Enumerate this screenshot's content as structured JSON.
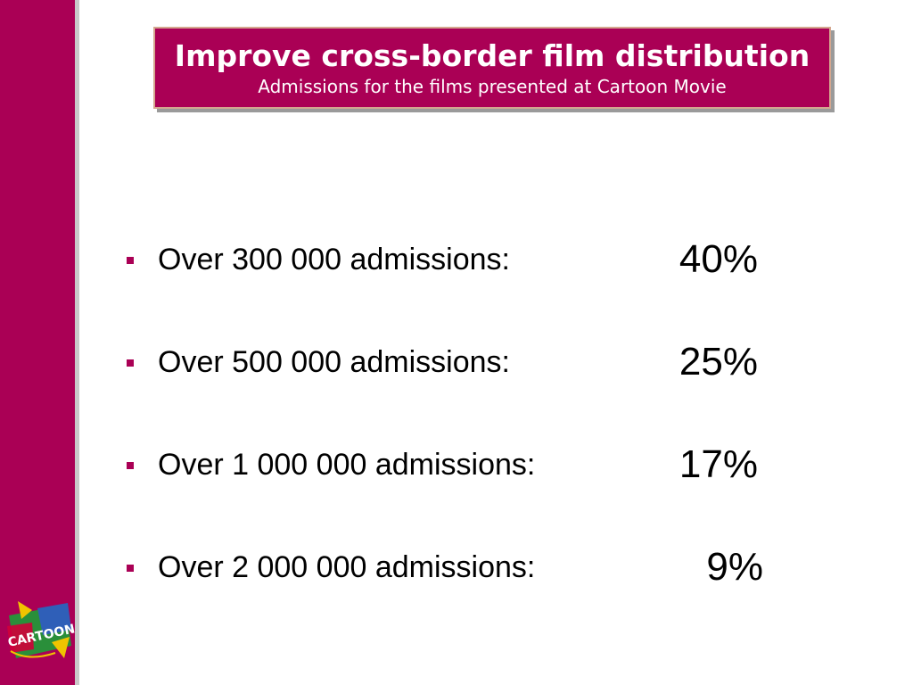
{
  "title": {
    "main": "Improve cross-border film distribution",
    "subtitle": "Admissions for the films presented at Cartoon Movie"
  },
  "items": [
    {
      "label": "Over 300 000 admissions:",
      "value": "40%"
    },
    {
      "label": "Over 500 000 admissions:",
      "value": "25%"
    },
    {
      "label": "Over 1 000 000 admissions:",
      "value": "17%"
    },
    {
      "label": "Over 2 000 000 admissions:",
      "value": "9%"
    }
  ],
  "logo": {
    "text": "CARTOON",
    "colors": [
      "#2a8f3a",
      "#f0c400",
      "#2f5fb8",
      "#d0003a"
    ]
  },
  "colors": {
    "accent": "#aa0055",
    "text": "#000000",
    "title_text": "#ffffff"
  }
}
